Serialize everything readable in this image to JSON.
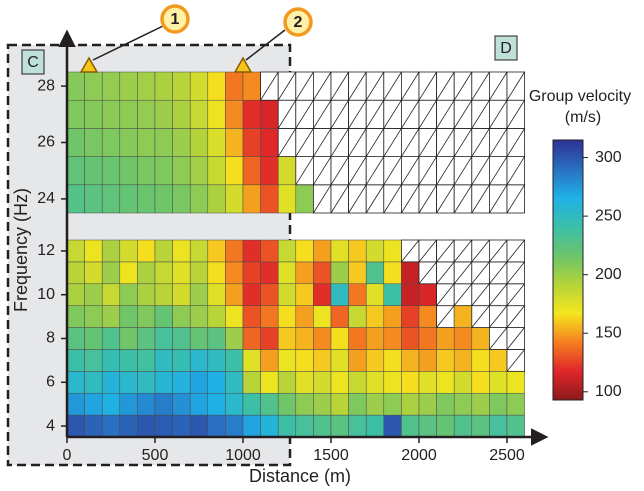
{
  "chart_data": {
    "type": "heatmap",
    "xlabel": "Distance (m)",
    "ylabel": "Frequency (Hz)",
    "x": [
      50,
      150,
      250,
      350,
      450,
      550,
      650,
      750,
      850,
      950,
      1050,
      1150,
      1250,
      1350,
      1450,
      1550,
      1650,
      1750,
      1850,
      1950,
      2050,
      2150,
      2250,
      2350,
      2450,
      2550
    ],
    "xlim": [
      0,
      2700
    ],
    "xticks": [
      0,
      500,
      1000,
      1500,
      2000,
      2500
    ],
    "panels": [
      {
        "ylim": [
          23.5,
          28.5
        ],
        "yticks": [
          24,
          26,
          28
        ],
        "y": [
          24,
          25,
          26,
          27,
          28
        ],
        "z": [
          [
            228,
            225,
            222,
            220,
            218,
            215,
            212,
            205,
            195,
            180,
            150,
            130,
            175,
            205,
            null,
            null,
            null,
            null,
            null,
            null,
            null,
            null,
            null,
            null,
            null,
            null
          ],
          [
            222,
            220,
            218,
            215,
            212,
            210,
            205,
            198,
            185,
            165,
            135,
            120,
            180,
            null,
            null,
            null,
            null,
            null,
            null,
            null,
            null,
            null,
            null,
            null,
            null,
            null
          ],
          [
            215,
            212,
            210,
            208,
            205,
            205,
            200,
            192,
            178,
            155,
            125,
            118,
            null,
            null,
            null,
            null,
            null,
            null,
            null,
            null,
            null,
            null,
            null,
            null,
            null,
            null
          ],
          [
            210,
            208,
            206,
            205,
            203,
            200,
            195,
            185,
            170,
            145,
            120,
            115,
            null,
            null,
            null,
            null,
            null,
            null,
            null,
            null,
            null,
            null,
            null,
            null,
            null,
            null
          ],
          [
            208,
            205,
            203,
            200,
            198,
            195,
            190,
            180,
            165,
            140,
            145,
            null,
            null,
            null,
            null,
            null,
            null,
            null,
            null,
            null,
            null,
            null,
            null,
            null,
            null,
            null
          ]
        ]
      },
      {
        "ylim": [
          3.5,
          12.5
        ],
        "yticks": [
          4,
          6,
          8,
          10,
          12
        ],
        "y": [
          4,
          5,
          6,
          7,
          8,
          9,
          10,
          11,
          12
        ],
        "z": [
          [
            300,
            295,
            290,
            295,
            300,
            298,
            295,
            300,
            290,
            285,
            270,
            260,
            240,
            235,
            230,
            225,
            235,
            240,
            300,
            230,
            225,
            220,
            230,
            225,
            235,
            230
          ],
          [
            275,
            270,
            265,
            275,
            280,
            285,
            278,
            270,
            265,
            255,
            240,
            230,
            215,
            205,
            200,
            190,
            210,
            200,
            205,
            195,
            200,
            210,
            205,
            200,
            210,
            205
          ],
          [
            255,
            250,
            260,
            255,
            250,
            258,
            262,
            270,
            265,
            250,
            190,
            170,
            190,
            175,
            180,
            170,
            185,
            175,
            170,
            165,
            175,
            170,
            180,
            165,
            175,
            170
          ],
          [
            240,
            235,
            245,
            240,
            238,
            250,
            245,
            255,
            250,
            240,
            175,
            150,
            170,
            165,
            160,
            175,
            150,
            160,
            165,
            155,
            150,
            160,
            155,
            165,
            160,
            null
          ],
          [
            225,
            220,
            230,
            215,
            225,
            235,
            230,
            220,
            225,
            200,
            135,
            125,
            160,
            155,
            145,
            165,
            140,
            150,
            145,
            130,
            140,
            150,
            145,
            155,
            null,
            null
          ],
          [
            210,
            205,
            200,
            215,
            210,
            220,
            205,
            200,
            190,
            170,
            130,
            140,
            165,
            150,
            170,
            135,
            185,
            160,
            150,
            125,
            145,
            null,
            155,
            null,
            null,
            null
          ],
          [
            195,
            200,
            185,
            205,
            195,
            190,
            180,
            200,
            175,
            150,
            120,
            130,
            180,
            160,
            120,
            250,
            140,
            175,
            240,
            110,
            115,
            null,
            null,
            null,
            null,
            null
          ],
          [
            190,
            180,
            200,
            170,
            195,
            185,
            175,
            190,
            165,
            145,
            125,
            120,
            175,
            150,
            130,
            200,
            160,
            230,
            165,
            110,
            null,
            null,
            null,
            null,
            null,
            null
          ],
          [
            185,
            170,
            195,
            180,
            165,
            190,
            170,
            185,
            160,
            140,
            120,
            130,
            185,
            165,
            150,
            175,
            160,
            180,
            170,
            null,
            null,
            null,
            null,
            null,
            null,
            null
          ]
        ]
      }
    ],
    "colorbar": {
      "label": "Group velocity",
      "unit": "(m/s)",
      "clim": [
        93,
        315
      ],
      "ticks": [
        100,
        150,
        200,
        250,
        300
      ],
      "colors": [
        "#8b1a1a",
        "#e0262a",
        "#f57f20",
        "#f5e61e",
        "#b5d33a",
        "#6cc46b",
        "#3bbfaa",
        "#1fb1e6",
        "#2a6fc2",
        "#2e3192"
      ]
    },
    "annotations": [
      "C",
      "D",
      "1",
      "2"
    ]
  }
}
